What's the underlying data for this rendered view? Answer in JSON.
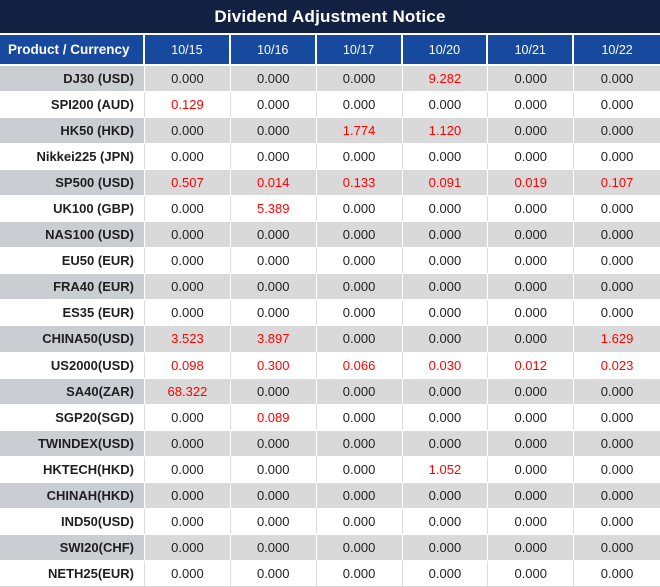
{
  "title": "Dividend Adjustment Notice",
  "colors": {
    "title_bg": "#122141",
    "header_bg": "#17499E",
    "stripe_bg": "#D9D9D9",
    "stripe_product_bg": "#CACDD2",
    "text_dark": "#1F1F1F",
    "value_red": "#FF0000",
    "header_text": "#FFFFFF"
  },
  "table": {
    "product_header": "Product / Currency",
    "date_headers": [
      "10/15",
      "10/16",
      "10/17",
      "10/20",
      "10/21",
      "10/22"
    ],
    "zero_value": "0.000",
    "rows": [
      {
        "product": "DJ30 (USD)",
        "values": [
          "0.000",
          "0.000",
          "0.000",
          "9.282",
          "0.000",
          "0.000"
        ]
      },
      {
        "product": "SPI200 (AUD)",
        "values": [
          "0.129",
          "0.000",
          "0.000",
          "0.000",
          "0.000",
          "0.000"
        ]
      },
      {
        "product": "HK50 (HKD)",
        "values": [
          "0.000",
          "0.000",
          "1.774",
          "1.120",
          "0.000",
          "0.000"
        ]
      },
      {
        "product": "Nikkei225 (JPN)",
        "values": [
          "0.000",
          "0.000",
          "0.000",
          "0.000",
          "0.000",
          "0.000"
        ]
      },
      {
        "product": "SP500 (USD)",
        "values": [
          "0.507",
          "0.014",
          "0.133",
          "0.091",
          "0.019",
          "0.107"
        ]
      },
      {
        "product": "UK100 (GBP)",
        "values": [
          "0.000",
          "5.389",
          "0.000",
          "0.000",
          "0.000",
          "0.000"
        ]
      },
      {
        "product": "NAS100 (USD)",
        "values": [
          "0.000",
          "0.000",
          "0.000",
          "0.000",
          "0.000",
          "0.000"
        ]
      },
      {
        "product": "EU50 (EUR)",
        "values": [
          "0.000",
          "0.000",
          "0.000",
          "0.000",
          "0.000",
          "0.000"
        ]
      },
      {
        "product": "FRA40 (EUR)",
        "values": [
          "0.000",
          "0.000",
          "0.000",
          "0.000",
          "0.000",
          "0.000"
        ]
      },
      {
        "product": "ES35 (EUR)",
        "values": [
          "0.000",
          "0.000",
          "0.000",
          "0.000",
          "0.000",
          "0.000"
        ]
      },
      {
        "product": "CHINA50(USD)",
        "values": [
          "3.523",
          "3.897",
          "0.000",
          "0.000",
          "0.000",
          "1.629"
        ]
      },
      {
        "product": "US2000(USD)",
        "values": [
          "0.098",
          "0.300",
          "0.066",
          "0.030",
          "0.012",
          "0.023"
        ]
      },
      {
        "product": "SA40(ZAR)",
        "values": [
          "68.322",
          "0.000",
          "0.000",
          "0.000",
          "0.000",
          "0.000"
        ]
      },
      {
        "product": "SGP20(SGD)",
        "values": [
          "0.000",
          "0.089",
          "0.000",
          "0.000",
          "0.000",
          "0.000"
        ]
      },
      {
        "product": "TWINDEX(USD)",
        "values": [
          "0.000",
          "0.000",
          "0.000",
          "0.000",
          "0.000",
          "0.000"
        ]
      },
      {
        "product": "HKTECH(HKD)",
        "values": [
          "0.000",
          "0.000",
          "0.000",
          "1.052",
          "0.000",
          "0.000"
        ]
      },
      {
        "product": "CHINAH(HKD)",
        "values": [
          "0.000",
          "0.000",
          "0.000",
          "0.000",
          "0.000",
          "0.000"
        ]
      },
      {
        "product": "IND50(USD)",
        "values": [
          "0.000",
          "0.000",
          "0.000",
          "0.000",
          "0.000",
          "0.000"
        ]
      },
      {
        "product": "SWI20(CHF)",
        "values": [
          "0.000",
          "0.000",
          "0.000",
          "0.000",
          "0.000",
          "0.000"
        ]
      },
      {
        "product": "NETH25(EUR)",
        "values": [
          "0.000",
          "0.000",
          "0.000",
          "0.000",
          "0.000",
          "0.000"
        ]
      }
    ]
  }
}
